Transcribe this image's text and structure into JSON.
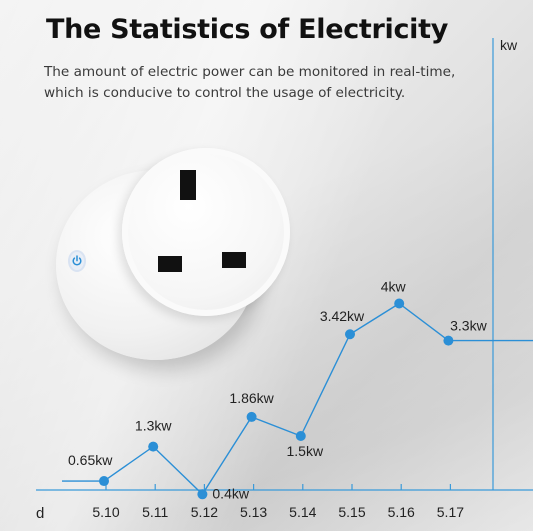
{
  "header": {
    "title": "The Statistics of Electricity",
    "subtitle": "The amount of electric power can be monitored in real-time, which is conducive to control the usage of electricity."
  },
  "product": {
    "name": "smart plug",
    "button_icon": "power-icon"
  },
  "colors": {
    "accent": "#2b8fd6",
    "axis": "#3a9ad9"
  },
  "chart_data": {
    "type": "line",
    "categories": [
      "5.10",
      "5.11",
      "5.12",
      "5.13",
      "5.14",
      "5.15",
      "5.16",
      "5.17"
    ],
    "series": [
      {
        "values": [
          0.65,
          1.3,
          0.4,
          1.86,
          1.5,
          3.42,
          4,
          3.3
        ],
        "labels": [
          "0.65kw",
          "1.3kw",
          "0.4kw",
          "1.86kw",
          "1.5kw",
          "3.42kw",
          "4kw",
          "3.3kw"
        ]
      }
    ],
    "xlabel": "d",
    "ylabel": "kw",
    "grid": false
  }
}
